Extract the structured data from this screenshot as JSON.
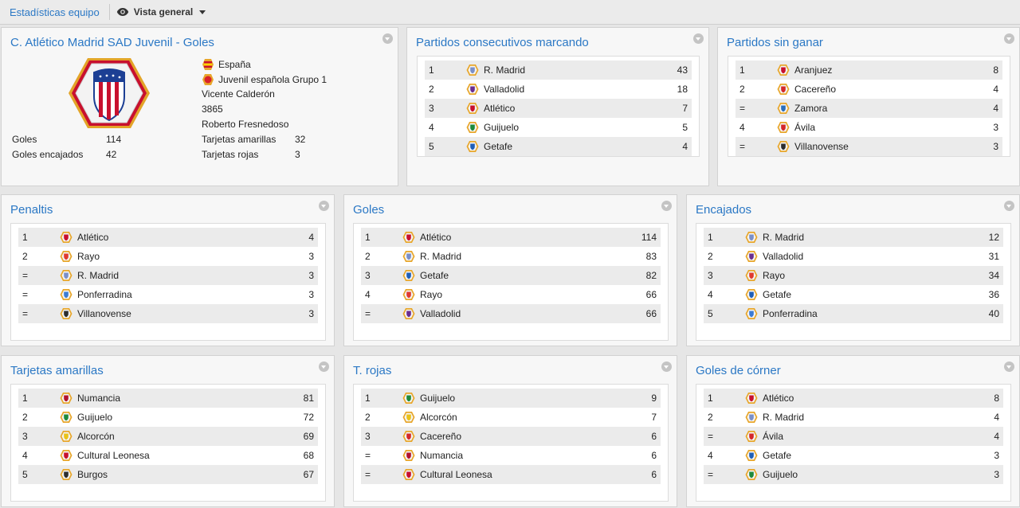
{
  "topbar": {
    "breadcrumb": "Estadísticas equipo",
    "view_label": "Vista general"
  },
  "club_panel": {
    "title": "C. Atlético Madrid SAD Juvenil - Goles",
    "country": "España",
    "competition": "Juvenil española Grupo 1",
    "stadium": "Vicente Calderón",
    "capacity": "3865",
    "coach": "Roberto Fresnedoso",
    "stats": {
      "goals_label": "Goles",
      "goals_value": "114",
      "conceded_label": "Goles encajados",
      "conceded_value": "42",
      "yellow_label": "Tarjetas amarillas",
      "yellow_value": "32",
      "red_label": "Tarjetas rojas",
      "red_value": "3"
    }
  },
  "panels": [
    {
      "title": "Partidos consecutivos marcando",
      "rows": [
        {
          "rank": "1",
          "team": "R. Madrid",
          "value": "43",
          "badge": "real-madrid-crest"
        },
        {
          "rank": "2",
          "team": "Valladolid",
          "value": "18",
          "badge": "valladolid-crest"
        },
        {
          "rank": "3",
          "team": "Atlético",
          "value": "7",
          "badge": "atletico-crest"
        },
        {
          "rank": "4",
          "team": "Guijuelo",
          "value": "5",
          "badge": "guijuelo-crest"
        },
        {
          "rank": "5",
          "team": "Getafe",
          "value": "4",
          "badge": "getafe-crest"
        }
      ]
    },
    {
      "title": "Partidos sin ganar",
      "rows": [
        {
          "rank": "1",
          "team": "Aranjuez",
          "value": "8",
          "badge": "aranjuez-crest"
        },
        {
          "rank": "2",
          "team": "Cacereño",
          "value": "4",
          "badge": "cacereno-crest"
        },
        {
          "rank": "=",
          "team": "Zamora",
          "value": "4",
          "badge": "zamora-crest"
        },
        {
          "rank": "4",
          "team": "Ávila",
          "value": "3",
          "badge": "avila-crest"
        },
        {
          "rank": "=",
          "team": "Villanovense",
          "value": "3",
          "badge": "villanovense-crest"
        }
      ]
    },
    {
      "title": "Penaltis",
      "rows": [
        {
          "rank": "1",
          "team": "Atlético",
          "value": "4",
          "badge": "atletico-crest"
        },
        {
          "rank": "2",
          "team": "Rayo",
          "value": "3",
          "badge": "rayo-crest"
        },
        {
          "rank": "=",
          "team": "R. Madrid",
          "value": "3",
          "badge": "real-madrid-crest"
        },
        {
          "rank": "=",
          "team": "Ponferradina",
          "value": "3",
          "badge": "ponferradina-crest"
        },
        {
          "rank": "=",
          "team": "Villanovense",
          "value": "3",
          "badge": "villanovense-crest"
        }
      ]
    },
    {
      "title": "Goles",
      "rows": [
        {
          "rank": "1",
          "team": "Atlético",
          "value": "114",
          "badge": "atletico-crest"
        },
        {
          "rank": "2",
          "team": "R. Madrid",
          "value": "83",
          "badge": "real-madrid-crest"
        },
        {
          "rank": "3",
          "team": "Getafe",
          "value": "82",
          "badge": "getafe-crest"
        },
        {
          "rank": "4",
          "team": "Rayo",
          "value": "66",
          "badge": "rayo-crest"
        },
        {
          "rank": "=",
          "team": "Valladolid",
          "value": "66",
          "badge": "valladolid-crest"
        }
      ]
    },
    {
      "title": "Encajados",
      "rows": [
        {
          "rank": "1",
          "team": "R. Madrid",
          "value": "12",
          "badge": "real-madrid-crest"
        },
        {
          "rank": "2",
          "team": "Valladolid",
          "value": "31",
          "badge": "valladolid-crest"
        },
        {
          "rank": "3",
          "team": "Rayo",
          "value": "34",
          "badge": "rayo-crest"
        },
        {
          "rank": "4",
          "team": "Getafe",
          "value": "36",
          "badge": "getafe-crest"
        },
        {
          "rank": "5",
          "team": "Ponferradina",
          "value": "40",
          "badge": "ponferradina-crest"
        }
      ]
    },
    {
      "title": "Tarjetas amarillas",
      "rows": [
        {
          "rank": "1",
          "team": "Numancia",
          "value": "81",
          "badge": "numancia-crest"
        },
        {
          "rank": "2",
          "team": "Guijuelo",
          "value": "72",
          "badge": "guijuelo-crest"
        },
        {
          "rank": "3",
          "team": "Alcorcón",
          "value": "69",
          "badge": "alcorcon-crest"
        },
        {
          "rank": "4",
          "team": "Cultural Leonesa",
          "value": "68",
          "badge": "cultural-leonesa-crest"
        },
        {
          "rank": "5",
          "team": "Burgos",
          "value": "67",
          "badge": "burgos-crest"
        }
      ]
    },
    {
      "title": "T. rojas",
      "rows": [
        {
          "rank": "1",
          "team": "Guijuelo",
          "value": "9",
          "badge": "guijuelo-crest"
        },
        {
          "rank": "2",
          "team": "Alcorcón",
          "value": "7",
          "badge": "alcorcon-crest"
        },
        {
          "rank": "3",
          "team": "Cacereño",
          "value": "6",
          "badge": "cacereno-crest"
        },
        {
          "rank": "=",
          "team": "Numancia",
          "value": "6",
          "badge": "numancia-crest"
        },
        {
          "rank": "=",
          "team": "Cultural Leonesa",
          "value": "6",
          "badge": "cultural-leonesa-crest"
        }
      ]
    },
    {
      "title": "Goles de córner",
      "rows": [
        {
          "rank": "1",
          "team": "Atlético",
          "value": "8",
          "badge": "atletico-crest"
        },
        {
          "rank": "2",
          "team": "R. Madrid",
          "value": "4",
          "badge": "real-madrid-crest"
        },
        {
          "rank": "=",
          "team": "Ávila",
          "value": "4",
          "badge": "avila-crest"
        },
        {
          "rank": "4",
          "team": "Getafe",
          "value": "3",
          "badge": "getafe-crest"
        },
        {
          "rank": "=",
          "team": "Guijuelo",
          "value": "3",
          "badge": "guijuelo-crest"
        }
      ]
    }
  ],
  "badge_colors": {
    "real-madrid-crest": "#7a8fc9",
    "valladolid-crest": "#6a2d91",
    "atletico-crest": "#c8102e",
    "guijuelo-crest": "#1e8a3c",
    "getafe-crest": "#1f5fb8",
    "aranjuez-crest": "#c8102e",
    "cacereno-crest": "#d4282a",
    "zamora-crest": "#2a6ebb",
    "avila-crest": "#d4282a",
    "villanovense-crest": "#2d2d2d",
    "rayo-crest": "#e03a2f",
    "ponferradina-crest": "#3a7bd5",
    "numancia-crest": "#b3122d",
    "alcorcon-crest": "#e9c21a",
    "cultural-leonesa-crest": "#c8102e",
    "burgos-crest": "#2d2d2d"
  }
}
